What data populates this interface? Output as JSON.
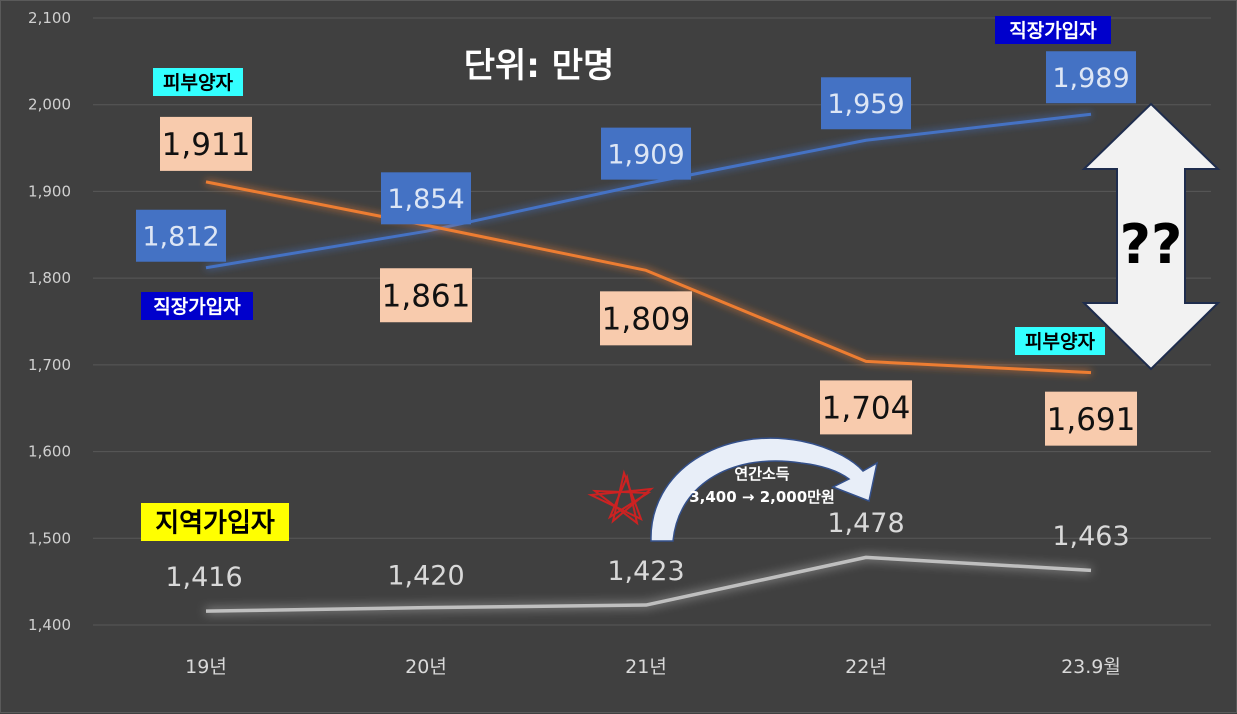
{
  "chart_data": {
    "type": "line",
    "title": "단위: 만명",
    "categories": [
      "19년",
      "20년",
      "21년",
      "22년",
      "23.9월"
    ],
    "ylim": [
      1400,
      2100
    ],
    "yticks": [
      1400,
      1500,
      1600,
      1700,
      1800,
      1900,
      2000,
      2100
    ],
    "ytick_labels": [
      "1,400",
      "1,500",
      "1,600",
      "1,700",
      "1,800",
      "1,900",
      "2,000",
      "2,100"
    ],
    "grid": true,
    "series": [
      {
        "name": "직장가입자",
        "color": "#4472C4",
        "label_bg": "#4472C4",
        "label_color": "#dde6f5",
        "values": [
          1812,
          1854,
          1909,
          1959,
          1989
        ],
        "value_labels": [
          "1,812",
          "1,854",
          "1,909",
          "1,959",
          "1,989"
        ]
      },
      {
        "name": "피부양자",
        "color": "#ED7D31",
        "label_bg": "#F8CBAD",
        "label_color": "#111111",
        "values": [
          1911,
          1861,
          1809,
          1704,
          1691
        ],
        "value_labels": [
          "1,911",
          "1,861",
          "1,809",
          "1,704",
          "1,691"
        ]
      },
      {
        "name": "지역가입자",
        "color": "#BFBFBF",
        "label_bg": "none",
        "label_color": "#d9d9d9",
        "values": [
          1416,
          1420,
          1423,
          1478,
          1463
        ],
        "value_labels": [
          "1,416",
          "1,420",
          "1,423",
          "1,478",
          "1,463"
        ]
      }
    ],
    "annotations": {
      "series_tags": [
        {
          "text": "피부양자",
          "bg": "#33FFFF",
          "color": "#000000"
        },
        {
          "text": "직장가입자",
          "bg": "#0000CC",
          "color": "#ffffff"
        },
        {
          "text": "직장가입자",
          "bg": "#0000CC",
          "color": "#ffffff"
        },
        {
          "text": "피부양자",
          "bg": "#33FFFF",
          "color": "#000000"
        },
        {
          "text": "지역가입자",
          "bg": "#FFFF00",
          "color": "#000000"
        }
      ],
      "question": "??",
      "income_line1": "연간소득",
      "income_line2": "3,400 → 2,000만원"
    }
  }
}
